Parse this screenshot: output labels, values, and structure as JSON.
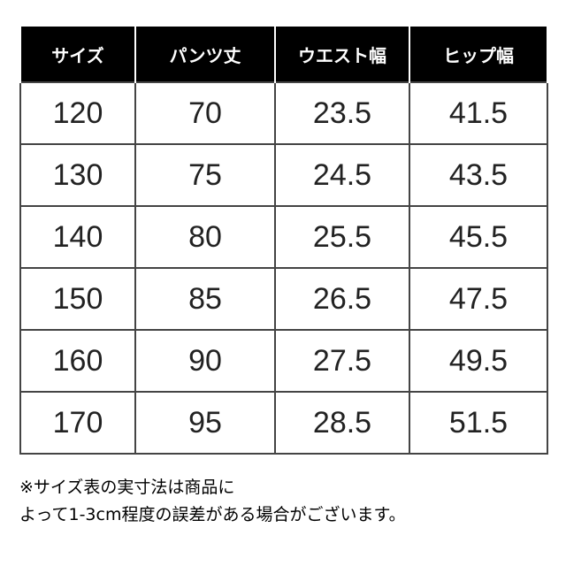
{
  "table": {
    "header": [
      "サイズ",
      "パンツ丈",
      "ウエスト幅",
      "ヒップ幅"
    ],
    "rows": [
      [
        120,
        70,
        23.5,
        41.5
      ],
      [
        130,
        75,
        24.5,
        43.5
      ],
      [
        140,
        80,
        25.5,
        45.5
      ],
      [
        150,
        85,
        26.5,
        47.5
      ],
      [
        160,
        90,
        27.5,
        49.5
      ],
      [
        170,
        95,
        28.5,
        51.5
      ]
    ]
  },
  "note": [
    "※サイズ表の実寸法は商品に",
    "よって1-3cm程度の誤差がある場合がございます。"
  ]
}
